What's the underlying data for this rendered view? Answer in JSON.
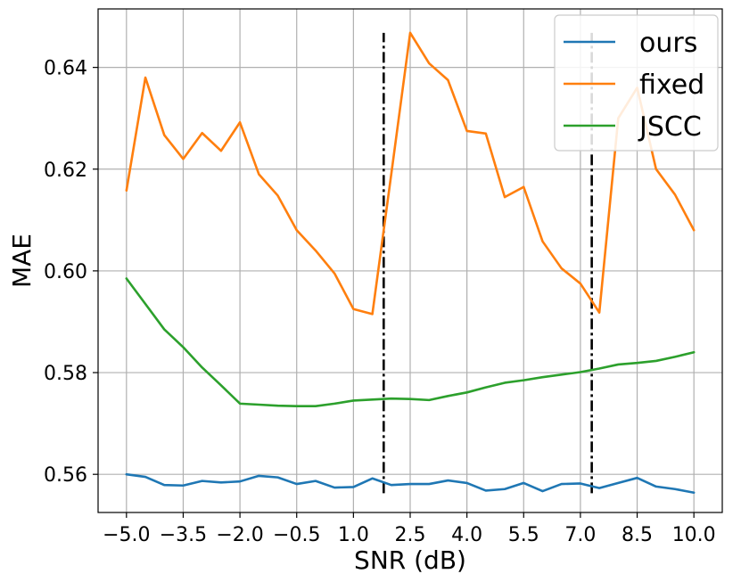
{
  "chart_data": {
    "type": "line",
    "title": "",
    "xlabel": "SNR (dB)",
    "ylabel": "MAE",
    "xlim": [
      -5.75,
      10.75
    ],
    "ylim": [
      0.5525,
      0.6515
    ],
    "grid": true,
    "legend_position": "top-right",
    "x": [
      -5.0,
      -4.5,
      -4.0,
      -3.5,
      -3.0,
      -2.5,
      -2.0,
      -1.5,
      -1.0,
      -0.5,
      0.0,
      0.5,
      1.0,
      1.5,
      2.0,
      2.5,
      3.0,
      3.5,
      4.0,
      4.5,
      5.0,
      5.5,
      6.0,
      6.5,
      7.0,
      7.5,
      8.0,
      8.5,
      9.0,
      9.5,
      10.0
    ],
    "xticks": [
      -5.0,
      -3.5,
      -2.0,
      -0.5,
      1.0,
      2.5,
      4.0,
      5.5,
      7.0,
      8.5,
      10.0
    ],
    "xtick_labels": [
      "−5.0",
      "−3.5",
      "−2.0",
      "−0.5",
      "1.0",
      "2.5",
      "4.0",
      "5.5",
      "7.0",
      "8.5",
      "10.0"
    ],
    "yticks": [
      0.56,
      0.58,
      0.6,
      0.62,
      0.64
    ],
    "ytick_labels": [
      "0.56",
      "0.58",
      "0.60",
      "0.62",
      "0.64"
    ],
    "series": [
      {
        "name": "ours",
        "color": "#1f77b4",
        "values": [
          0.56,
          0.5595,
          0.5579,
          0.5578,
          0.5587,
          0.5584,
          0.5586,
          0.5597,
          0.5594,
          0.5581,
          0.5587,
          0.5574,
          0.5575,
          0.5592,
          0.5579,
          0.5581,
          0.5581,
          0.5588,
          0.5583,
          0.5568,
          0.5571,
          0.5583,
          0.5567,
          0.5581,
          0.5582,
          0.5573,
          0.5583,
          0.5593,
          0.5576,
          0.5571,
          0.5564
        ]
      },
      {
        "name": "fixed",
        "color": "#ff7f0e",
        "values": [
          0.6158,
          0.638,
          0.6267,
          0.622,
          0.6271,
          0.6236,
          0.6292,
          0.619,
          0.6148,
          0.608,
          0.604,
          0.5995,
          0.5925,
          0.5915,
          0.619,
          0.6468,
          0.6408,
          0.6375,
          0.6275,
          0.627,
          0.6145,
          0.6165,
          0.6058,
          0.6005,
          0.5975,
          0.5918,
          0.63,
          0.636,
          0.62,
          0.615,
          0.608
        ]
      },
      {
        "name": "JSCC",
        "color": "#2ca02c",
        "values": [
          0.5985,
          0.5935,
          0.5885,
          0.585,
          0.581,
          0.5775,
          0.5739,
          0.5737,
          0.5735,
          0.5734,
          0.5734,
          0.5739,
          0.5745,
          0.5747,
          0.5749,
          0.5748,
          0.5746,
          0.5754,
          0.5761,
          0.5771,
          0.578,
          0.5785,
          0.5791,
          0.5796,
          0.5801,
          0.5808,
          0.5816,
          0.5819,
          0.5823,
          0.5831,
          0.584
        ]
      }
    ],
    "vlines": [
      {
        "x": 1.8,
        "ymin": 0.5563,
        "ymax": 0.6468,
        "style": "dashdot",
        "color": "#000000"
      },
      {
        "x": 7.3,
        "ymin": 0.5563,
        "ymax": 0.6468,
        "style": "dashdot",
        "color": "#000000"
      }
    ]
  }
}
